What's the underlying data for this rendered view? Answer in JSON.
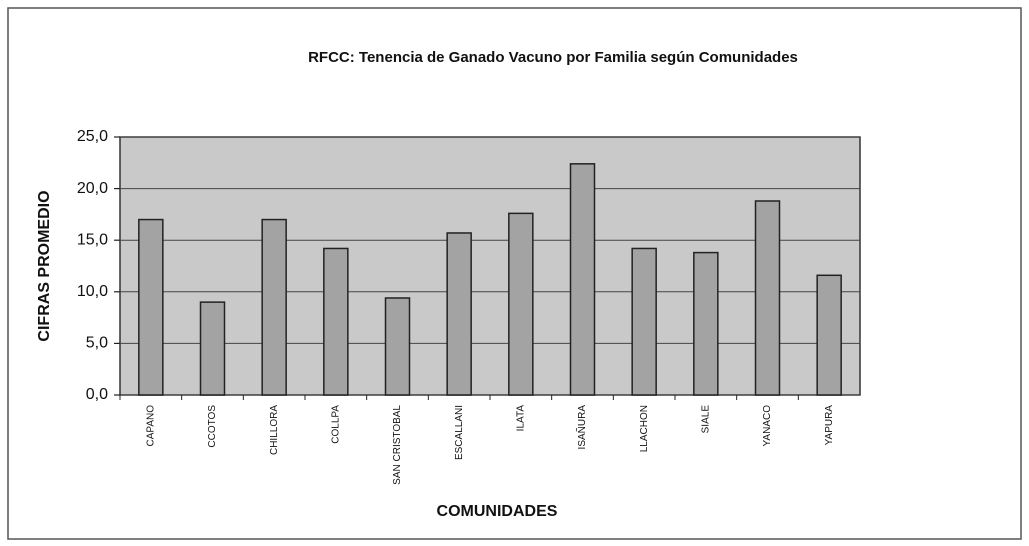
{
  "chart_data": {
    "type": "bar",
    "title": "RFCC: Tenencia de Ganado Vacuno por Familia según Comunidades",
    "x_label": "COMUNIDADES",
    "y_label": "CIFRAS PROMEDIO",
    "categories": [
      "CAPANO",
      "CCOTOS",
      "CHILLORA",
      "COLLPA",
      "SAN CRISTOBAL",
      "ESCALLANI",
      "ILATA",
      "ISAÑURA",
      "LLACHON",
      "SIALE",
      "YANACO",
      "YAPURA"
    ],
    "values": [
      17.0,
      9.0,
      17.0,
      14.2,
      9.4,
      15.7,
      17.6,
      22.4,
      14.2,
      13.8,
      18.8,
      11.6
    ],
    "color": "#a3a3a3",
    "ylim": [
      0,
      25
    ],
    "yticks": [
      {
        "value": 0,
        "label": "0,0"
      },
      {
        "value": 5,
        "label": "5,0"
      },
      {
        "value": 10,
        "label": "10,0"
      },
      {
        "value": 15,
        "label": "15,0"
      },
      {
        "value": 20,
        "label": "20,0"
      },
      {
        "value": 25,
        "label": "25,0"
      }
    ],
    "grid": true
  }
}
